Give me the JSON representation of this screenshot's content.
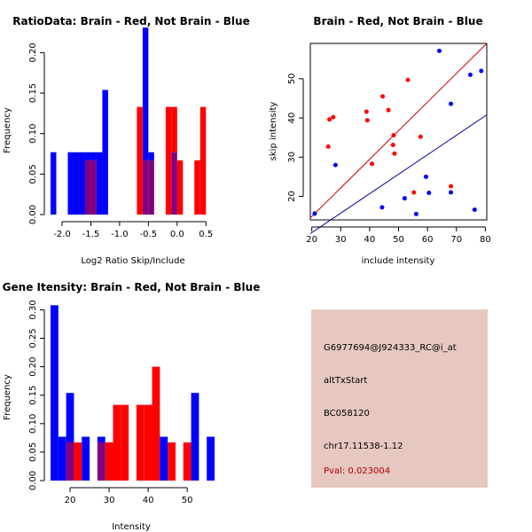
{
  "colors": {
    "brain": "#ff0000",
    "not_brain": "#0000ff",
    "overlap": "#800080",
    "box_bg": "#e6c8c0",
    "pval": "#b00000"
  },
  "chart_data": [
    {
      "type": "bar",
      "title": "RatioData: Brain - Red, Not Brain - Blue",
      "xlabel": "Log2 Ratio Skip/Include",
      "ylabel": "Frequency",
      "xlim": [
        -2.2,
        0.65
      ],
      "ylim": [
        0,
        0.23
      ],
      "xticks": [
        -2.0,
        -1.5,
        -1.0,
        -0.5,
        0.0,
        0.5
      ],
      "xtick_labels": [
        "-2.0",
        "-1.5",
        "-1.0",
        "-0.5",
        "0.0",
        "0.5"
      ],
      "yticks": [
        0.0,
        0.05,
        0.1,
        0.15,
        0.2
      ],
      "ytick_labels": [
        "0.00",
        "0.05",
        "0.10",
        "0.15",
        "0.20"
      ],
      "bin_width": 0.1,
      "series": [
        {
          "name": "Not Brain",
          "color": "blue",
          "bins": [
            [
              -2.2,
              0.077
            ],
            [
              -1.9,
              0.077
            ],
            [
              -1.8,
              0.077
            ],
            [
              -1.7,
              0.077
            ],
            [
              -1.6,
              0.077
            ],
            [
              -1.5,
              0.077
            ],
            [
              -1.4,
              0.077
            ],
            [
              -1.3,
              0.154
            ],
            [
              -0.6,
              0.231
            ],
            [
              -0.5,
              0.077
            ],
            [
              -0.1,
              0.077
            ]
          ]
        },
        {
          "name": "Brain",
          "color": "red",
          "bins": [
            [
              -1.6,
              0.067
            ],
            [
              -1.5,
              0.067
            ],
            [
              -0.7,
              0.133
            ],
            [
              -0.6,
              0.067
            ],
            [
              -0.5,
              0.067
            ],
            [
              -0.2,
              0.133
            ],
            [
              -0.1,
              0.133
            ],
            [
              0.0,
              0.067
            ],
            [
              0.3,
              0.067
            ],
            [
              0.4,
              0.133
            ]
          ]
        }
      ]
    },
    {
      "type": "scatter",
      "title": "Brain - Red, Not Brain - Blue",
      "xlabel": "include intensity",
      "ylabel": "skip intensity",
      "xlim": [
        19.5,
        80.5
      ],
      "ylim": [
        14,
        59
      ],
      "xticks": [
        20,
        30,
        40,
        50,
        60,
        70,
        80
      ],
      "xtick_labels": [
        "20",
        "30",
        "40",
        "50",
        "60",
        "70",
        "80"
      ],
      "yticks": [
        20,
        30,
        40,
        50
      ],
      "ytick_labels": [
        "20",
        "30",
        "40",
        "50"
      ],
      "series": [
        {
          "name": "Brain",
          "color": "red",
          "points": [
            [
              25.7,
              32.7
            ],
            [
              26.1,
              39.6
            ],
            [
              27.4,
              40.2
            ],
            [
              38.9,
              41.6
            ],
            [
              39.2,
              39.4
            ],
            [
              40.8,
              28.3
            ],
            [
              44.5,
              45.5
            ],
            [
              46.5,
              42.0
            ],
            [
              48.1,
              33.1
            ],
            [
              48.3,
              35.6
            ],
            [
              48.6,
              30.9
            ],
            [
              53.2,
              49.7
            ],
            [
              55.3,
              21.0
            ],
            [
              57.6,
              35.2
            ],
            [
              68.1,
              22.6
            ]
          ]
        },
        {
          "name": "Not Brain",
          "color": "blue",
          "points": [
            [
              21.0,
              15.6
            ],
            [
              28.2,
              28.0
            ],
            [
              44.3,
              17.2
            ],
            [
              52.1,
              19.5
            ],
            [
              56.1,
              15.5
            ],
            [
              59.5,
              25.0
            ],
            [
              60.5,
              20.9
            ],
            [
              64.1,
              57.1
            ],
            [
              68.1,
              21.0
            ],
            [
              68.1,
              43.6
            ],
            [
              74.8,
              51.0
            ],
            [
              76.3,
              16.6
            ],
            [
              78.6,
              52.0
            ]
          ]
        }
      ],
      "fit_lines": [
        {
          "name": "Brain",
          "color": "red",
          "x": [
            19.5,
            80.5
          ],
          "y": [
            14.5,
            59.0
          ]
        },
        {
          "name": "Not Brain",
          "color": "blue",
          "x": [
            19.5,
            80.5
          ],
          "y": [
            10.5,
            40.8
          ]
        }
      ]
    },
    {
      "type": "bar",
      "title": "Gene Itensity: Brain - Red, Not Brain - Blue",
      "xlabel": "Intensity",
      "ylabel": "Frequency",
      "xlim": [
        15,
        57
      ],
      "ylim": [
        0,
        0.31
      ],
      "xticks": [
        20,
        30,
        40,
        50
      ],
      "xtick_labels": [
        "20",
        "30",
        "40",
        "50"
      ],
      "yticks": [
        0.0,
        0.05,
        0.1,
        0.15,
        0.2,
        0.25,
        0.3
      ],
      "ytick_labels": [
        "0.00",
        "0.05",
        "0.10",
        "0.15",
        "0.20",
        "0.25",
        "0.30"
      ],
      "bin_width": 2,
      "series": [
        {
          "name": "Not Brain",
          "color": "blue",
          "bins": [
            [
              15,
              0.308
            ],
            [
              17,
              0.077
            ],
            [
              19,
              0.154
            ],
            [
              23,
              0.077
            ],
            [
              27,
              0.077
            ],
            [
              43,
              0.077
            ],
            [
              51,
              0.154
            ],
            [
              55,
              0.077
            ]
          ]
        },
        {
          "name": "Brain",
          "color": "red",
          "bins": [
            [
              19,
              0.067
            ],
            [
              21,
              0.067
            ],
            [
              27,
              0.067
            ],
            [
              29,
              0.067
            ],
            [
              31,
              0.133
            ],
            [
              33,
              0.133
            ],
            [
              37,
              0.133
            ],
            [
              39,
              0.133
            ],
            [
              41,
              0.2
            ],
            [
              45,
              0.067
            ],
            [
              49,
              0.067
            ]
          ]
        }
      ]
    }
  ],
  "info": {
    "probe": "G6977694@J924333_RC@i_at",
    "event": "altTxStart",
    "accession": "BC058120",
    "location": "chr17.11538-1.12",
    "pval": "Pval: 0.023004"
  }
}
